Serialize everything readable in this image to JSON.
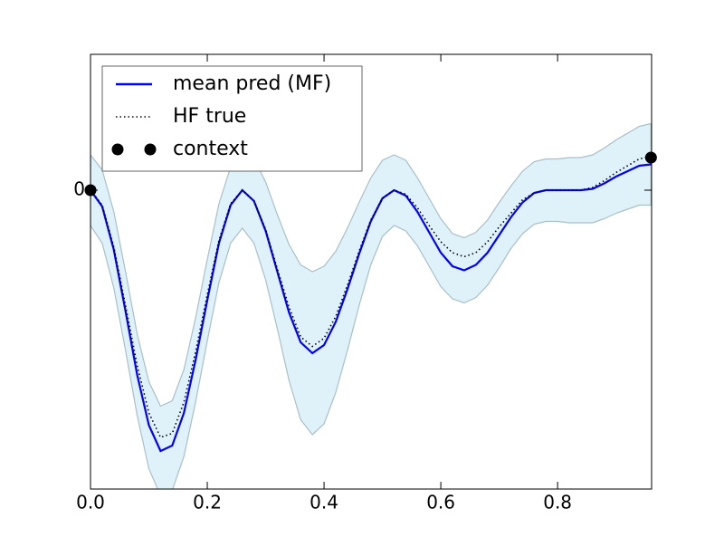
{
  "chart_data": {
    "type": "line",
    "x": [
      0,
      0.02,
      0.04,
      0.06,
      0.08,
      0.1,
      0.12,
      0.14,
      0.16,
      0.18,
      0.2,
      0.22,
      0.24,
      0.26,
      0.28,
      0.3,
      0.32,
      0.34,
      0.36,
      0.38,
      0.4,
      0.42,
      0.44,
      0.46,
      0.48,
      0.5,
      0.52,
      0.54,
      0.56,
      0.58,
      0.6,
      0.62,
      0.64,
      0.66,
      0.68,
      0.7,
      0.72,
      0.74,
      0.76,
      0.78,
      0.8,
      0.82,
      0.84,
      0.86,
      0.88,
      0.9,
      0.92,
      0.94,
      0.96
    ],
    "series": [
      {
        "name": "mean pred (MF)",
        "color": "#0000ff",
        "style": "solid",
        "values": [
          0,
          -0.12,
          -0.44,
          -0.89,
          -1.36,
          -1.73,
          -1.92,
          -1.88,
          -1.64,
          -1.25,
          -0.81,
          -0.39,
          -0.11,
          0,
          -0.08,
          -0.3,
          -0.6,
          -0.9,
          -1.12,
          -1.2,
          -1.14,
          -0.97,
          -0.73,
          -0.47,
          -0.23,
          -0.06,
          0,
          -0.04,
          -0.16,
          -0.31,
          -0.46,
          -0.56,
          -0.59,
          -0.55,
          -0.46,
          -0.33,
          -0.2,
          -0.09,
          -0.02,
          0,
          0,
          0,
          0,
          0.01,
          0.05,
          0.1,
          0.14,
          0.18,
          0.19
        ]
      },
      {
        "name": "HF true",
        "color": "#000000",
        "style": "dotted",
        "values": [
          0,
          -0.11,
          -0.42,
          -0.85,
          -1.29,
          -1.64,
          -1.82,
          -1.79,
          -1.56,
          -1.19,
          -0.77,
          -0.37,
          -0.1,
          0,
          -0.08,
          -0.29,
          -0.58,
          -0.86,
          -1.08,
          -1.15,
          -1.09,
          -0.93,
          -0.7,
          -0.45,
          -0.22,
          -0.06,
          0,
          -0.03,
          -0.13,
          -0.26,
          -0.38,
          -0.46,
          -0.49,
          -0.46,
          -0.38,
          -0.27,
          -0.17,
          -0.07,
          -0.02,
          0,
          0,
          0,
          0,
          0.02,
          0.07,
          0.13,
          0.18,
          0.23,
          0.25
        ]
      },
      {
        "name": "context",
        "color": "#000000",
        "style": "scatter",
        "x": [
          0,
          0.96
        ],
        "values": [
          0,
          0.24
        ]
      }
    ],
    "band": {
      "color": "#dff2fa",
      "edgecolor": "#a9bfc9",
      "upper": [
        0.26,
        0.15,
        -0.16,
        -0.6,
        -1.06,
        -1.41,
        -1.59,
        -1.55,
        -1.32,
        -0.94,
        -0.51,
        -0.1,
        0.17,
        0.28,
        0.23,
        0.06,
        -0.18,
        -0.4,
        -0.55,
        -0.6,
        -0.56,
        -0.45,
        -0.28,
        -0.09,
        0.09,
        0.22,
        0.26,
        0.22,
        0.09,
        -0.06,
        -0.21,
        -0.32,
        -0.35,
        -0.31,
        -0.22,
        -0.09,
        0.03,
        0.14,
        0.21,
        0.23,
        0.23,
        0.24,
        0.24,
        0.26,
        0.31,
        0.37,
        0.42,
        0.47,
        0.49
      ],
      "lower": [
        -0.26,
        -0.39,
        -0.72,
        -1.18,
        -1.66,
        -2.05,
        -2.25,
        -2.21,
        -1.96,
        -1.56,
        -1.11,
        -0.68,
        -0.39,
        -0.28,
        -0.39,
        -0.66,
        -1.02,
        -1.4,
        -1.69,
        -1.8,
        -1.72,
        -1.49,
        -1.18,
        -0.85,
        -0.55,
        -0.34,
        -0.26,
        -0.3,
        -0.41,
        -0.56,
        -0.71,
        -0.8,
        -0.83,
        -0.79,
        -0.7,
        -0.57,
        -0.43,
        -0.32,
        -0.25,
        -0.23,
        -0.23,
        -0.24,
        -0.24,
        -0.24,
        -0.21,
        -0.17,
        -0.14,
        -0.11,
        -0.11
      ]
    },
    "xlim": [
      0,
      0.961
    ],
    "ylim": [
      -2.2,
      1.0
    ],
    "xticks": [
      {
        "value": 0,
        "label": "0.0"
      },
      0.2,
      0.4,
      0.6,
      0.8
    ],
    "yticks": [
      0
    ],
    "legend": "upper left"
  }
}
